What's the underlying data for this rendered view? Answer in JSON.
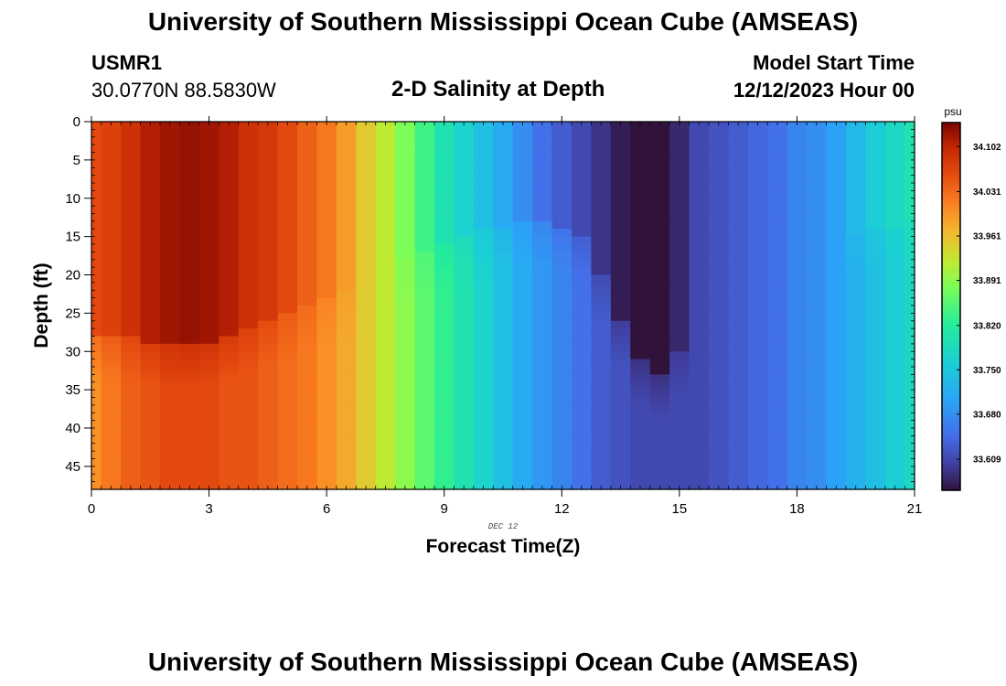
{
  "header": {
    "title": "University of Southern Mississippi Ocean Cube (AMSEAS)",
    "station_id": "USMR1",
    "coordinates": "30.0770N  88.5830W",
    "plot_title": "2-D Salinity at Depth",
    "model_start_label": "Model Start Time",
    "model_start_value": "12/12/2023 Hour 00"
  },
  "footer": {
    "title": "University of Southern Mississippi Ocean Cube (AMSEAS)"
  },
  "chart_data": {
    "type": "heatmap",
    "title": "2-D Salinity at Depth",
    "xlabel": "Forecast Time(Z)",
    "ylabel": "Depth (ft)",
    "date_annotation": "DEC 12",
    "xlim": [
      0,
      21
    ],
    "ylim": [
      0,
      48
    ],
    "x_ticks": [
      0,
      3,
      6,
      9,
      12,
      15,
      18,
      21
    ],
    "y_ticks": [
      0,
      5,
      10,
      15,
      20,
      25,
      30,
      35,
      40,
      45
    ],
    "colorbar": {
      "unit": "psu",
      "min": 33.56,
      "max": 34.14,
      "tick_labels": [
        "34.102",
        "34.031",
        "33.961",
        "33.891",
        "33.820",
        "33.750",
        "33.680",
        "33.609"
      ]
    },
    "time_hours": [
      0,
      0.5,
      1,
      1.5,
      2,
      2.5,
      3,
      3.5,
      4,
      4.5,
      5,
      5.5,
      6,
      6.5,
      7,
      7.5,
      8,
      8.5,
      9,
      9.5,
      10,
      10.5,
      11,
      11.5,
      12,
      12.5,
      13,
      13.5,
      14,
      14.5,
      15,
      15.5,
      16,
      16.5,
      17,
      17.5,
      18,
      18.5,
      19,
      19.5,
      20,
      20.5,
      21
    ],
    "surface_salinity_psu": [
      34.06,
      34.07,
      34.09,
      34.11,
      34.12,
      34.125,
      34.12,
      34.11,
      34.09,
      34.08,
      34.06,
      34.04,
      34.02,
      33.99,
      33.95,
      33.92,
      33.88,
      33.84,
      33.8,
      33.77,
      33.74,
      33.71,
      33.68,
      33.65,
      33.63,
      33.61,
      33.59,
      33.57,
      33.56,
      33.56,
      33.58,
      33.61,
      33.62,
      33.63,
      33.64,
      33.65,
      33.67,
      33.68,
      33.7,
      33.73,
      33.76,
      33.78,
      33.8
    ],
    "bottom_salinity_psu": [
      34.0,
      34.02,
      34.04,
      34.05,
      34.06,
      34.06,
      34.06,
      34.05,
      34.05,
      34.04,
      34.03,
      34.02,
      34.0,
      33.98,
      33.95,
      33.92,
      33.89,
      33.86,
      33.83,
      33.8,
      33.77,
      33.74,
      33.71,
      33.69,
      33.67,
      33.65,
      33.63,
      33.62,
      33.61,
      33.61,
      33.61,
      33.61,
      33.62,
      33.63,
      33.64,
      33.65,
      33.67,
      33.68,
      33.7,
      33.72,
      33.74,
      33.76,
      33.78
    ],
    "upper_layer_bottom_ft": [
      28,
      28,
      28,
      28.5,
      29,
      29,
      28.5,
      28,
      27,
      26,
      25,
      24,
      23,
      22,
      20,
      19,
      18,
      17,
      16,
      15,
      14,
      13.5,
      13,
      13,
      13.5,
      15,
      20,
      26,
      31,
      33,
      30,
      25,
      22,
      20,
      19,
      18,
      17,
      16,
      15,
      14.5,
      14,
      13.5,
      13
    ]
  }
}
